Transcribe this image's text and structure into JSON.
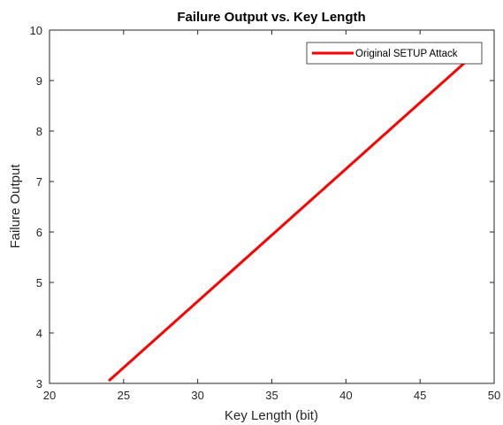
{
  "chart_data": {
    "type": "line",
    "title": "Failure Output vs. Key Length",
    "xlabel": "Key Length (bit)",
    "ylabel": "Failure Output",
    "xlim": [
      20,
      50
    ],
    "ylim": [
      3,
      10
    ],
    "xticks": [
      20,
      25,
      30,
      35,
      40,
      45,
      50
    ],
    "yticks": [
      3,
      4,
      5,
      6,
      7,
      8,
      9,
      10
    ],
    "grid": false,
    "legend_position": "top-right",
    "series": [
      {
        "name": "Original SETUP Attack",
        "color": "#ff0000",
        "x": [
          24,
          48
        ],
        "y": [
          3.05,
          9.35
        ]
      }
    ]
  }
}
